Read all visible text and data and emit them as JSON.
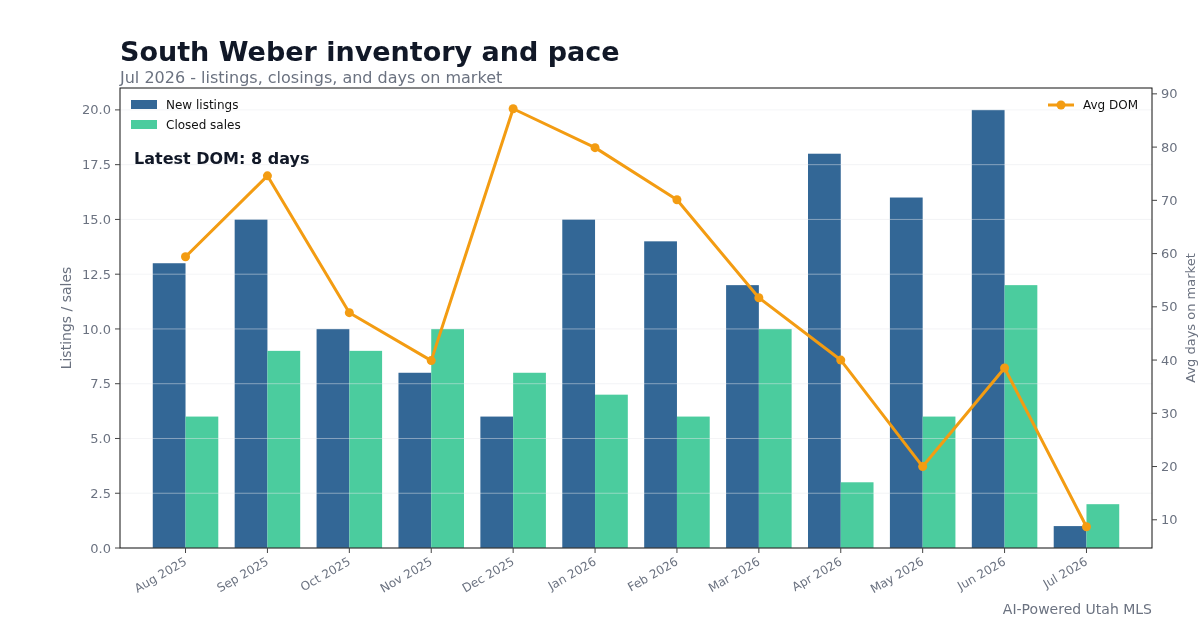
{
  "chart_data": {
    "type": "bar",
    "title": "South Weber inventory and pace",
    "subtitle": "Jul 2026 - listings, closings, and days on market",
    "ylabel": "Listings / sales",
    "y2label": "Avg days on market",
    "categories": [
      "Aug 2025",
      "Sep 2025",
      "Oct 2025",
      "Nov 2025",
      "Dec 2025",
      "Jan 2026",
      "Feb 2026",
      "Mar 2026",
      "Apr 2026",
      "May 2026",
      "Jun 2026",
      "Jul 2026"
    ],
    "series": [
      {
        "name": "New listings",
        "color": "#336796",
        "values": [
          13,
          15,
          10,
          8,
          6,
          15,
          14,
          12,
          18,
          16,
          20,
          1
        ]
      },
      {
        "name": "Closed sales",
        "color": "#4bcc9e",
        "values": [
          6,
          9,
          9,
          10,
          8,
          7,
          6,
          10,
          3,
          6,
          12,
          2
        ]
      },
      {
        "name": "Avg DOM",
        "type": "line",
        "axis": "y2",
        "color": "#f39c12",
        "values": [
          59.4,
          74.6,
          48.9,
          39.9,
          87.2,
          79.9,
          70.1,
          51.7,
          40.0,
          20.0,
          38.5,
          8.7
        ]
      }
    ],
    "ylim": [
      0,
      21
    ],
    "yticks": [
      {
        "value": 0,
        "label": "0.0"
      },
      {
        "value": 2.5,
        "label": "2.5"
      },
      {
        "value": 5,
        "label": "5.0"
      },
      {
        "value": 7.5,
        "label": "7.5"
      },
      {
        "value": 10,
        "label": "10.0"
      },
      {
        "value": 12.5,
        "label": "12.5"
      },
      {
        "value": 15,
        "label": "15.0"
      },
      {
        "value": 17.5,
        "label": "17.5"
      },
      {
        "value": 20,
        "label": "20.0"
      }
    ],
    "y2lim": [
      4.7,
      91.1
    ],
    "y2ticks": [
      10,
      20,
      30,
      40,
      50,
      60,
      70,
      80,
      90
    ],
    "grid": "y",
    "legend": "top left",
    "marker": "circle",
    "annotations": [
      "Latest DOM: 8 days",
      "AI-Powered Utah MLS"
    ]
  }
}
